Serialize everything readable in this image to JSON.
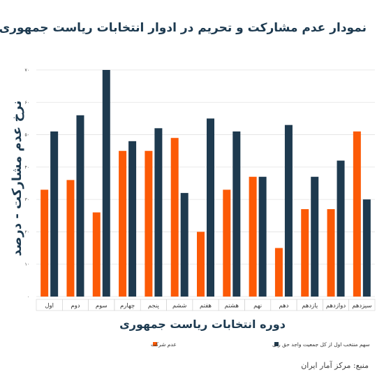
{
  "title": "نمودار عدم مشارکت و تحریم در ادوار انتخابات ریاست جمهوری",
  "source": "منبع: مرکز آمار ایران",
  "colors": {
    "orange": "#fc5a06",
    "navy": "#1e3a4f",
    "grid": "#e2e2e2"
  },
  "chart_data": {
    "type": "bar",
    "title": "نمودار عدم مشارکت و تحریم در ادوار انتخابات ریاست جمهوری",
    "xlabel": "دوره انتخابات ریاست جمهوری",
    "ylabel": "نرخ عدم مشارکت - درصد",
    "ylim": [
      0,
      70
    ],
    "yticks": [
      "۰",
      "۱۰",
      "۲۰",
      "۳۰",
      "۴۰",
      "۵۰",
      "۶۰",
      "۷۰"
    ],
    "grid": true,
    "legend_position": "bottom",
    "categories": [
      "اول",
      "دوم",
      "سوم",
      "چهارم",
      "پنجم",
      "ششم",
      "هفتم",
      "هشتم",
      "نهم",
      "دهم",
      "یازدهم",
      "دوازدهم",
      "سیزدهم"
    ],
    "series": [
      {
        "name": "عدم شرکت",
        "color": "#fc5a06",
        "values": [
          33,
          36,
          26,
          45,
          45,
          49,
          20,
          33,
          37,
          15,
          27,
          27,
          51
        ]
      },
      {
        "name": "سهم منتخب اول از کل جمعیت واجد حق رای",
        "color": "#1e3a4f",
        "values": [
          51,
          56,
          70,
          48,
          52,
          32,
          55,
          51,
          37,
          53,
          37,
          42,
          30
        ]
      }
    ]
  }
}
